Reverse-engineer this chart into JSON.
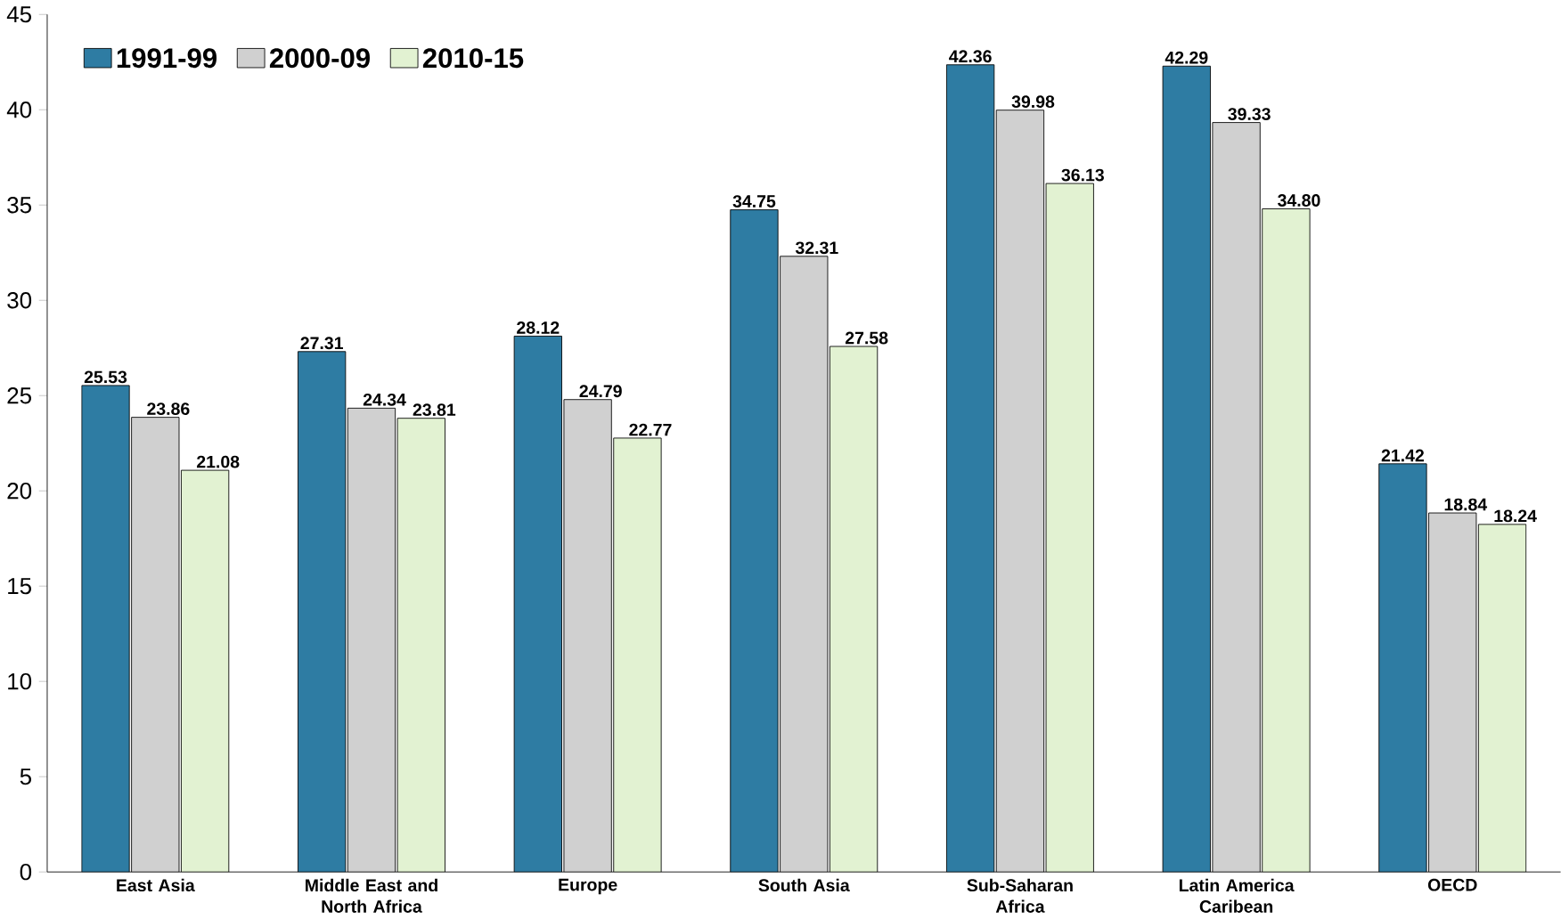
{
  "chart_data": {
    "type": "bar",
    "categories": [
      "East Asia",
      "Middle East and North Africa",
      "Europe",
      "South Asia",
      "Sub-Saharan Africa",
      "Latin America Caribean",
      "OECD"
    ],
    "series": [
      {
        "name": "1991-99",
        "color": "#2e7ca3",
        "values": [
          25.53,
          27.31,
          28.12,
          34.75,
          42.36,
          42.29,
          21.42
        ],
        "value_labels": [
          "25.53",
          "27.31",
          "28.12",
          "34.75",
          "42.36",
          "42.29",
          "21.42"
        ]
      },
      {
        "name": "2000-09",
        "color": "#d0d0d0",
        "values": [
          23.86,
          24.34,
          24.79,
          32.31,
          39.98,
          39.33,
          18.84
        ],
        "value_labels": [
          "23.86",
          "24.34",
          "24.79",
          "32.31",
          "39.98",
          "39.33",
          "18.84"
        ]
      },
      {
        "name": "2010-15",
        "color": "#e2f2d2",
        "values": [
          21.08,
          23.81,
          22.77,
          27.58,
          36.13,
          34.8,
          18.24
        ],
        "value_labels": [
          "21.08",
          "23.81",
          "22.77",
          "27.58",
          "36.13",
          "34.80",
          "18.24"
        ]
      }
    ],
    "ylim": [
      0,
      45
    ],
    "yticks": [
      0,
      5,
      10,
      15,
      20,
      25,
      30,
      35,
      40,
      45
    ],
    "grid": false,
    "legend": "top left"
  }
}
